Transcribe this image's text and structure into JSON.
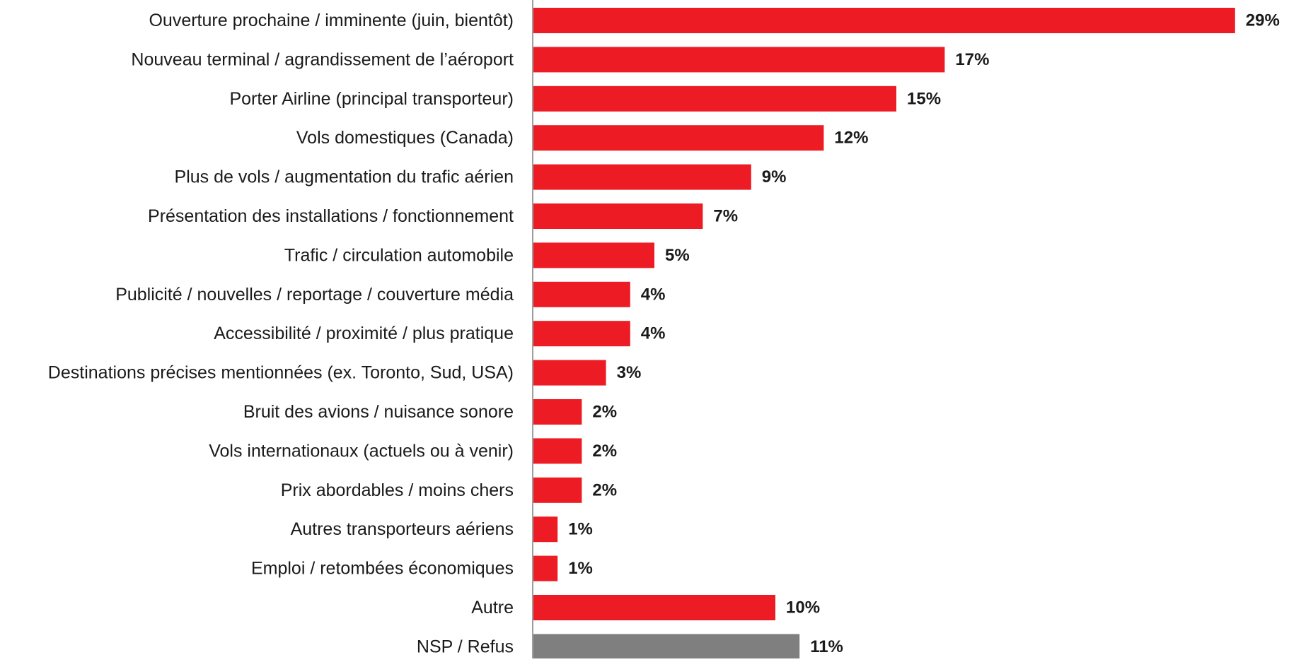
{
  "chart_data": {
    "type": "bar",
    "orientation": "horizontal",
    "categories": [
      "Ouverture prochaine / imminente (juin, bientôt)",
      "Nouveau terminal / agrandissement de l’aéroport",
      "Porter Airline (principal transporteur)",
      "Vols domestiques (Canada)",
      "Plus de vols / augmentation du trafic aérien",
      "Présentation des installations / fonctionnement",
      "Trafic / circulation automobile",
      "Publicité / nouvelles / reportage / couverture média",
      "Accessibilité / proximité / plus pratique",
      "Destinations précises mentionnées (ex. Toronto, Sud, USA)",
      "Bruit des avions / nuisance sonore",
      "Vols internationaux (actuels ou à venir)",
      "Prix abordables / moins chers",
      "Autres transporteurs aériens",
      "Emploi / retombées économiques",
      "Autre",
      "NSP / Refus"
    ],
    "values": [
      29,
      17,
      15,
      12,
      9,
      7,
      5,
      4,
      4,
      3,
      2,
      2,
      2,
      1,
      1,
      10,
      11
    ],
    "value_labels": [
      "29%",
      "17%",
      "15%",
      "12%",
      "9%",
      "7%",
      "5%",
      "4%",
      "4%",
      "3%",
      "2%",
      "2%",
      "2%",
      "1%",
      "1%",
      "10%",
      "11%"
    ],
    "bar_colors": [
      "#ed1c24",
      "#ed1c24",
      "#ed1c24",
      "#ed1c24",
      "#ed1c24",
      "#ed1c24",
      "#ed1c24",
      "#ed1c24",
      "#ed1c24",
      "#ed1c24",
      "#ed1c24",
      "#ed1c24",
      "#ed1c24",
      "#ed1c24",
      "#ed1c24",
      "#ed1c24",
      "#7f7f7f"
    ],
    "title": "",
    "xlabel": "",
    "ylabel": "",
    "xlim": [
      0,
      30
    ],
    "grid": false,
    "legend": "none"
  }
}
